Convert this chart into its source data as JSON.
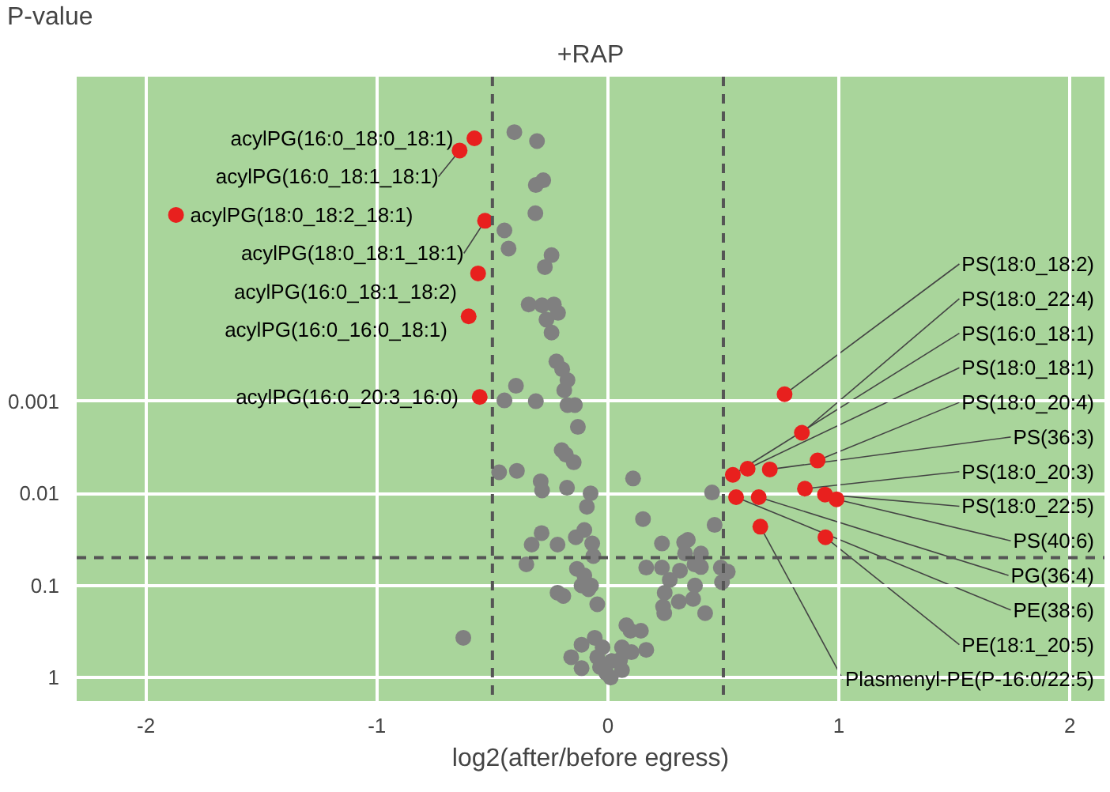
{
  "chart_data": {
    "type": "scatter",
    "title": "+RAP",
    "ylabel": "P-value",
    "xlabel": "log2(after/before egress)",
    "log": "y",
    "xlim": [
      -2.3,
      2.15
    ],
    "ylim": [
      1.8,
      3e-07
    ],
    "xticks": [
      -2,
      -1,
      0,
      1,
      2
    ],
    "yticks": [
      1,
      0.1,
      0.01,
      0.001
    ],
    "grid": true,
    "marker": "circle",
    "ref_lines": [
      {
        "axis": "x",
        "value": -0.5,
        "color": "#555555",
        "line_style": "dashed"
      },
      {
        "axis": "x",
        "value": 0.5,
        "color": "#555555",
        "line_style": "dashed"
      },
      {
        "axis": "y",
        "value": 0.05,
        "color": "#555555",
        "line_style": "dashed"
      }
    ],
    "series": [
      {
        "color": "#808080",
        "x": [
          -0.405,
          -0.307,
          -0.28,
          -0.312,
          -0.314,
          -0.448,
          -0.43,
          -0.244,
          -0.273,
          -0.343,
          -0.285,
          -0.234,
          -0.216,
          -0.266,
          -0.244,
          -0.223,
          -0.198,
          -0.175,
          -0.398,
          -0.189,
          -0.448,
          -0.312,
          -0.175,
          -0.143,
          -0.13,
          -0.2,
          -0.182,
          -0.148,
          -0.471,
          -0.394,
          -0.291,
          -0.285,
          -0.177,
          -0.075,
          -0.091,
          0.109,
          0.152,
          0.451,
          0.462,
          -0.287,
          -0.33,
          -0.218,
          -0.139,
          -0.102,
          -0.068,
          -0.063,
          -0.353,
          -0.134,
          -0.102,
          -0.114,
          -0.073,
          -0.218,
          -0.193,
          -0.084,
          -0.046,
          0.234,
          0.33,
          0.346,
          0.403,
          0.334,
          0.166,
          0.234,
          0.268,
          0.312,
          0.375,
          0.403,
          0.489,
          0.519,
          0.494,
          0.377,
          0.246,
          0.307,
          0.369,
          0.239,
          0.244,
          0.421,
          -0.626,
          0.08,
          0.098,
          0.143,
          -0.057,
          -0.114,
          -0.023,
          0.061,
          0.102,
          0.166,
          -0.159,
          -0.046,
          0.016,
          0.053,
          -0.114,
          -0.034,
          -0.007,
          0.061,
          0.012
        ],
        "values": [
          1.2e-06,
          1.5e-06,
          4e-06,
          4.5e-06,
          9.1e-06,
          1.4e-05,
          2.2e-05,
          2.6e-05,
          3.5e-05,
          8.9e-05,
          9.1e-05,
          8.9e-05,
          0.00011,
          0.00013,
          0.00018,
          0.00037,
          0.00045,
          0.00059,
          0.00068,
          0.00076,
          0.00098,
          0.001,
          0.0011,
          0.0011,
          0.0019,
          0.0034,
          0.0038,
          0.0046,
          0.0059,
          0.0057,
          0.0074,
          0.0093,
          0.0087,
          0.01,
          0.014,
          0.0069,
          0.019,
          0.0098,
          0.022,
          0.027,
          0.036,
          0.036,
          0.03,
          0.025,
          0.035,
          0.048,
          0.059,
          0.066,
          0.078,
          0.1,
          0.1,
          0.12,
          0.13,
          0.11,
          0.16,
          0.035,
          0.034,
          0.032,
          0.045,
          0.045,
          0.064,
          0.064,
          0.087,
          0.069,
          0.059,
          0.063,
          0.064,
          0.071,
          0.092,
          0.1,
          0.12,
          0.15,
          0.14,
          0.17,
          0.2,
          0.2,
          0.37,
          0.27,
          0.31,
          0.31,
          0.37,
          0.44,
          0.47,
          0.47,
          0.53,
          0.5,
          0.6,
          0.6,
          0.66,
          0.64,
          0.79,
          0.77,
          0.89,
          0.83,
          1.0
        ]
      },
      {
        "color": "#e8201e",
        "x": [
          -0.578,
          -0.642,
          -1.87,
          -0.532,
          -0.562,
          -0.603,
          -0.555,
          0.765,
          0.84,
          0.541,
          0.605,
          0.908,
          0.701,
          0.853,
          0.94,
          0.99,
          0.653,
          0.555,
          0.942,
          0.66
        ],
        "values": [
          1.4e-06,
          1.9e-06,
          9.5e-06,
          1.1e-05,
          4.1e-05,
          0.00012,
          0.0009,
          0.00084,
          0.0022,
          0.0063,
          0.0054,
          0.0044,
          0.0055,
          0.0089,
          0.0103,
          0.0116,
          0.011,
          0.011,
          0.03,
          0.023
        ]
      }
    ],
    "annotations": [
      {
        "text": "acylPG(16:0_18:0_18:1)",
        "x": -0.578,
        "y": 1.4e-06
      },
      {
        "text": "acylPG(16:0_18:1_18:1)",
        "x": -0.642,
        "y": 1.9e-06
      },
      {
        "text": "acylPG(18:0_18:2_18:1)",
        "x": -1.87,
        "y": 9.5e-06
      },
      {
        "text": "acylPG(18:0_18:1_18:1)",
        "x": -0.532,
        "y": 1.1e-05
      },
      {
        "text": "acylPG(16:0_18:1_18:2)",
        "x": -0.562,
        "y": 4.1e-05
      },
      {
        "text": "acylPG(16:0_16:0_18:1)",
        "x": -0.603,
        "y": 0.00012
      },
      {
        "text": "acylPG(16:0_20:3_16:0)",
        "x": -0.555,
        "y": 0.0009
      },
      {
        "text": "PS(18:0_18:2)",
        "x": 0.765,
        "y": 0.00084
      },
      {
        "text": "PS(18:0_22:4)",
        "x": 0.84,
        "y": 0.0022
      },
      {
        "text": "PS(16:0_18:1)",
        "x": 0.541,
        "y": 0.0063
      },
      {
        "text": "PS(18:0_18:1)",
        "x": 0.605,
        "y": 0.0054
      },
      {
        "text": "PS(18:0_20:4)",
        "x": 0.908,
        "y": 0.0044
      },
      {
        "text": "PS(36:3)",
        "x": 0.701,
        "y": 0.0055
      },
      {
        "text": "PS(18:0_20:3)",
        "x": 0.853,
        "y": 0.0089
      },
      {
        "text": "PS(18:0_22:5)",
        "x": 0.94,
        "y": 0.0103
      },
      {
        "text": "PS(40:6)",
        "x": 0.99,
        "y": 0.0116
      },
      {
        "text": "PG(36:4)",
        "x": 0.653,
        "y": 0.011
      },
      {
        "text": "PE(38:6)",
        "x": 0.555,
        "y": 0.011
      },
      {
        "text": "PE(18:1_20:5)",
        "x": 0.942,
        "y": 0.03
      },
      {
        "text": "Plasmenyl-PE(P-16:0/22:5)",
        "x": 0.66,
        "y": 0.023
      }
    ]
  }
}
